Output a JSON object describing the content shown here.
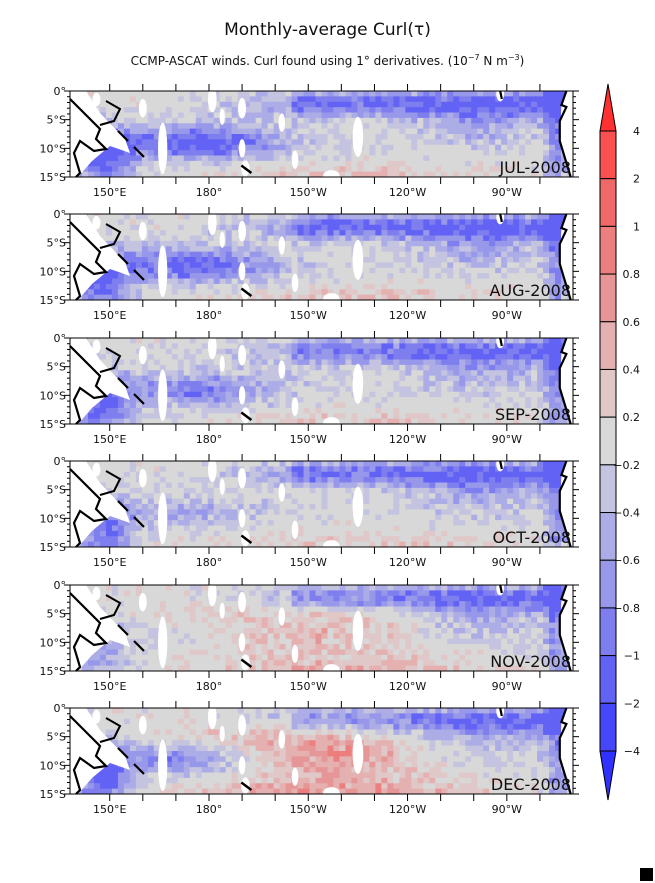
{
  "chart_data": {
    "type": "heatmap",
    "title": "Monthly-average Curl(τ)",
    "subtitle": {
      "text": "CCMP-ASCAT winds. Curl found using 1° derivatives. (10",
      "exp1": "−7",
      "mid": " N m",
      "exp2": "−3",
      "end": ")"
    },
    "xlim_lon_east": [
      138,
      290
    ],
    "ylim_lat": [
      -15,
      0
    ],
    "x_ticks": [
      {
        "lon": 150,
        "label": "150°E"
      },
      {
        "lon": 180,
        "label": "180°"
      },
      {
        "lon": 210,
        "label": "150°W"
      },
      {
        "lon": 240,
        "label": "120°W"
      },
      {
        "lon": 270,
        "label": "90°W"
      }
    ],
    "x_minor_ticks": [
      160,
      170,
      190,
      200,
      220,
      230,
      250,
      260,
      280
    ],
    "y_ticks": [
      {
        "lat": 0,
        "label": "0°"
      },
      {
        "lat": -5,
        "label": "5°S"
      },
      {
        "lat": -10,
        "label": "10°S"
      },
      {
        "lat": -15,
        "label": "15°S"
      }
    ],
    "panels": [
      {
        "label": "JUL-2008",
        "equator_band": -1.0,
        "south_band": -1.2,
        "west_pool": -1.1,
        "central": -0.1,
        "south_pacific": 0.35
      },
      {
        "label": "AUG-2008",
        "equator_band": -1.0,
        "south_band": -1.1,
        "west_pool": -1.1,
        "central": -0.1,
        "south_pacific": 0.35
      },
      {
        "label": "SEP-2008",
        "equator_band": -0.9,
        "south_band": -0.8,
        "west_pool": -1.1,
        "central": -0.1,
        "south_pacific": 0.3
      },
      {
        "label": "OCT-2008",
        "equator_band": -1.0,
        "south_band": -0.5,
        "west_pool": -1.0,
        "central": 0.0,
        "south_pacific": 0.3
      },
      {
        "label": "NOV-2008",
        "equator_band": -0.9,
        "south_band": -0.3,
        "west_pool": -0.6,
        "central": 0.45,
        "south_pacific": 0.4
      },
      {
        "label": "DEC-2008",
        "equator_band": -0.9,
        "south_band": -1.2,
        "west_pool": -1.2,
        "central": 0.8,
        "south_pacific": 0.5
      }
    ],
    "colorbar": {
      "levels": [
        "4",
        "2",
        "1",
        "0.8",
        "0.6",
        "0.4",
        "0.2",
        "−0.2",
        "−0.4",
        "−0.6",
        "−0.8",
        "−1",
        "−2",
        "−4"
      ],
      "colors": [
        "#ff3030",
        "#fa5050",
        "#f06868",
        "#ec7e7e",
        "#e69696",
        "#e4b0b0",
        "#e0c8c8",
        "#d8d8d8",
        "#c4c4e0",
        "#acace6",
        "#9898ea",
        "#7e7eee",
        "#6262f4",
        "#4646fa",
        "#3030ff"
      ],
      "extend": "both"
    }
  }
}
